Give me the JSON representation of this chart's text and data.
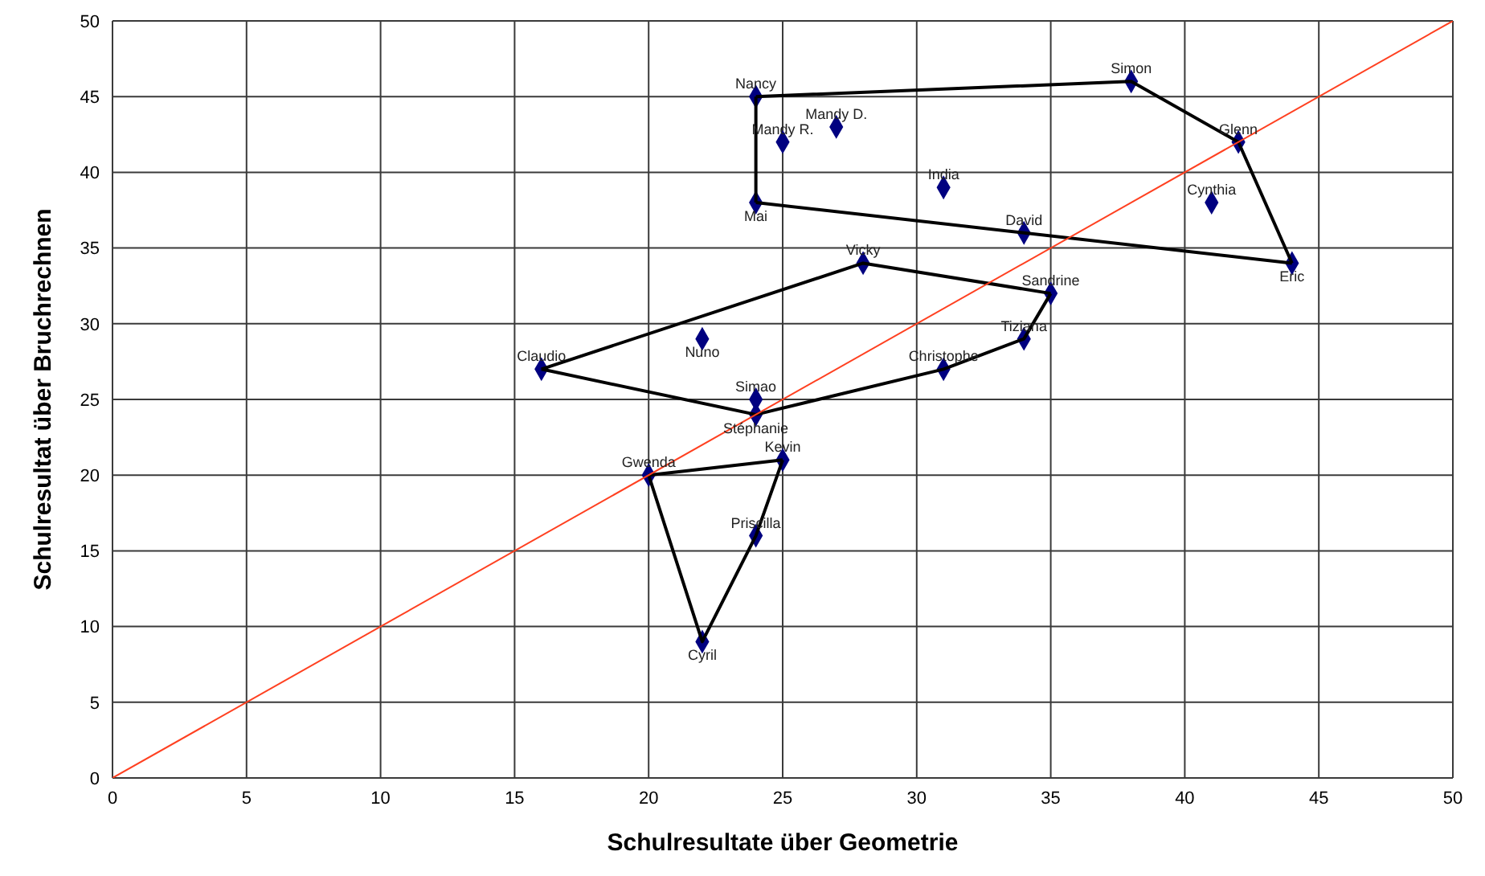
{
  "chart_data": {
    "type": "scatter",
    "xlabel": "Schulresultate über Geometrie",
    "ylabel": "Schulresultat über Bruchrechnen",
    "xlim": [
      0,
      50
    ],
    "ylim": [
      0,
      50
    ],
    "xticks": [
      0,
      5,
      10,
      15,
      20,
      25,
      30,
      35,
      40,
      45,
      50
    ],
    "yticks": [
      0,
      5,
      10,
      15,
      20,
      25,
      30,
      35,
      40,
      45,
      50
    ],
    "grid": true,
    "marker": "diamond",
    "series": [
      {
        "type": "scatter",
        "color": "#000080",
        "x": [
          24,
          25,
          27,
          24,
          31,
          34,
          38,
          42,
          41,
          44,
          28,
          35,
          34,
          31,
          22,
          16,
          24,
          24,
          20,
          25,
          24,
          22
        ],
        "values": [
          45,
          42,
          43,
          38,
          39,
          36,
          46,
          42,
          38,
          34,
          34,
          32,
          29,
          27,
          29,
          27,
          25,
          24,
          20,
          21,
          16,
          9
        ]
      },
      {
        "type": "line",
        "color": "#000000",
        "marker": "none",
        "x": [
          24,
          38,
          42,
          44
        ],
        "values": [
          45,
          46,
          42,
          34
        ]
      },
      {
        "type": "line",
        "color": "#000000",
        "marker": "none",
        "x": [
          24,
          44
        ],
        "values": [
          38,
          34
        ]
      },
      {
        "type": "line",
        "color": "#000000",
        "marker": "none",
        "x": [
          24,
          24
        ],
        "values": [
          45,
          38
        ]
      },
      {
        "type": "line",
        "color": "#000000",
        "marker": "none",
        "x": [
          16,
          28,
          35
        ],
        "values": [
          27,
          34,
          32
        ]
      },
      {
        "type": "line",
        "color": "#000000",
        "marker": "none",
        "x": [
          16,
          24,
          31,
          34,
          35
        ],
        "values": [
          27,
          24,
          27,
          29,
          32
        ]
      },
      {
        "type": "line",
        "color": "#000000",
        "marker": "none",
        "x": [
          20,
          25
        ],
        "values": [
          20,
          21
        ]
      },
      {
        "type": "line",
        "color": "#000000",
        "marker": "none",
        "x": [
          20,
          22,
          24,
          25
        ],
        "values": [
          20,
          9,
          16,
          21
        ]
      },
      {
        "type": "line",
        "color": "#ff4020",
        "marker": "none",
        "x": [
          0,
          50
        ],
        "values": [
          0,
          50
        ]
      }
    ],
    "annotations": [
      {
        "text": "Nancy",
        "x": 24,
        "y": 45
      },
      {
        "text": "Mandy R.",
        "x": 25,
        "y": 42
      },
      {
        "text": "Mandy D.",
        "x": 27,
        "y": 43
      },
      {
        "text": "Mai",
        "x": 24,
        "y": 38
      },
      {
        "text": "India",
        "x": 31,
        "y": 39
      },
      {
        "text": "David",
        "x": 34,
        "y": 36
      },
      {
        "text": "Simon",
        "x": 38,
        "y": 46
      },
      {
        "text": "Glenn",
        "x": 42,
        "y": 42
      },
      {
        "text": "Cynthia",
        "x": 41,
        "y": 38
      },
      {
        "text": "Eric",
        "x": 44,
        "y": 34
      },
      {
        "text": "Vicky",
        "x": 28,
        "y": 34
      },
      {
        "text": "Sandrine",
        "x": 35,
        "y": 32
      },
      {
        "text": "Tiziana",
        "x": 34,
        "y": 29
      },
      {
        "text": "Christophe",
        "x": 31,
        "y": 27
      },
      {
        "text": "Nuno",
        "x": 22,
        "y": 29
      },
      {
        "text": "Claudio",
        "x": 16,
        "y": 27
      },
      {
        "text": "Simao",
        "x": 24,
        "y": 25
      },
      {
        "text": "Stéphanie",
        "x": 24,
        "y": 24
      },
      {
        "text": "Gwenda",
        "x": 20,
        "y": 20
      },
      {
        "text": "Kevin",
        "x": 25,
        "y": 21
      },
      {
        "text": "Priscilla",
        "x": 24,
        "y": 16
      },
      {
        "text": "Cyril",
        "x": 22,
        "y": 9
      }
    ]
  }
}
